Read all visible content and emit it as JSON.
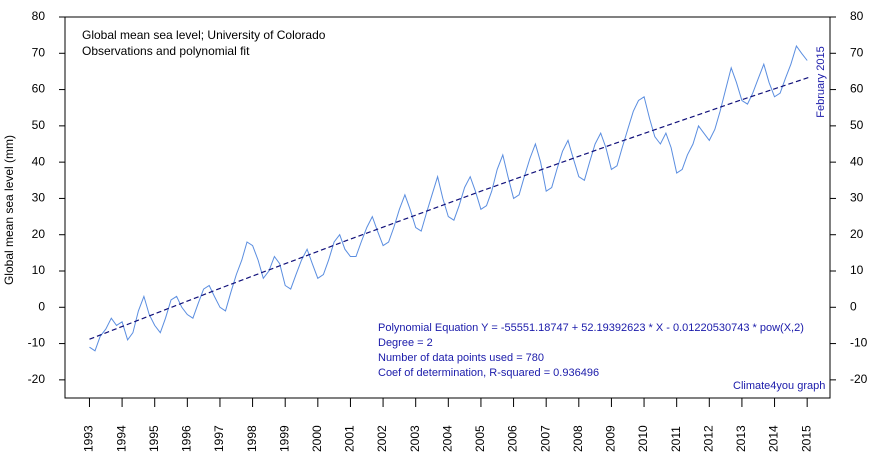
{
  "chart_data": {
    "type": "line",
    "title": "Global mean sea level; University of Colorado",
    "subtitle": "Observations and polynomial fit",
    "ylabel": "Global mean sea level (mm)",
    "date_label": "February 2015",
    "credit": "Climate4you graph",
    "annotations": [
      "Polynomial Equation Y = -55551.18747 + 52.19392623 * X - 0.01220530743 * pow(X,2)",
      "Degree = 2",
      "Number of data points used = 780",
      "Coef of determination, R-squared = 0.936496"
    ],
    "xlim": [
      1992.25,
      2015.7
    ],
    "xticks": [
      1993,
      1994,
      1995,
      1996,
      1997,
      1998,
      1999,
      2000,
      2001,
      2002,
      2003,
      2004,
      2005,
      2006,
      2007,
      2008,
      2009,
      2010,
      2011,
      2012,
      2013,
      2014,
      2015
    ],
    "ylim": [
      -25,
      80
    ],
    "yticks": [
      -20,
      -10,
      0,
      10,
      20,
      30,
      40,
      50,
      60,
      70,
      80
    ],
    "y2lim": [
      -25,
      80
    ],
    "y2ticks": [
      -20,
      -10,
      0,
      10,
      20,
      30,
      40,
      50,
      60,
      70,
      80
    ],
    "series": [
      {
        "color": "#5b8ee0",
        "style": "solid",
        "x": [
          1993,
          1993.17,
          1993.33,
          1993.5,
          1993.67,
          1993.83,
          1994,
          1994.17,
          1994.33,
          1994.5,
          1994.67,
          1994.83,
          1995,
          1995.17,
          1995.33,
          1995.5,
          1995.67,
          1995.83,
          1996,
          1996.17,
          1996.33,
          1996.5,
          1996.67,
          1996.83,
          1997,
          1997.17,
          1997.33,
          1997.5,
          1997.67,
          1997.83,
          1998,
          1998.17,
          1998.33,
          1998.5,
          1998.67,
          1998.83,
          1999,
          1999.17,
          1999.33,
          1999.5,
          1999.67,
          1999.83,
          2000,
          2000.17,
          2000.33,
          2000.5,
          2000.67,
          2000.83,
          2001,
          2001.17,
          2001.33,
          2001.5,
          2001.67,
          2001.83,
          2002,
          2002.17,
          2002.33,
          2002.5,
          2002.67,
          2002.83,
          2003,
          2003.17,
          2003.33,
          2003.5,
          2003.67,
          2003.83,
          2004,
          2004.17,
          2004.33,
          2004.5,
          2004.67,
          2004.83,
          2005,
          2005.17,
          2005.33,
          2005.5,
          2005.67,
          2005.83,
          2006,
          2006.17,
          2006.33,
          2006.5,
          2006.67,
          2006.83,
          2007,
          2007.17,
          2007.33,
          2007.5,
          2007.67,
          2007.83,
          2008,
          2008.17,
          2008.33,
          2008.5,
          2008.67,
          2008.83,
          2009,
          2009.17,
          2009.33,
          2009.5,
          2009.67,
          2009.83,
          2010,
          2010.17,
          2010.33,
          2010.5,
          2010.67,
          2010.83,
          2011,
          2011.17,
          2011.33,
          2011.5,
          2011.67,
          2011.83,
          2012,
          2012.17,
          2012.33,
          2012.5,
          2012.67,
          2012.83,
          2013,
          2013.17,
          2013.33,
          2013.5,
          2013.67,
          2013.83,
          2014,
          2014.17,
          2014.33,
          2014.5,
          2014.67,
          2014.83,
          2015
        ],
        "values": [
          -11,
          -12,
          -8,
          -6,
          -3,
          -5,
          -4,
          -9,
          -7,
          -1,
          3,
          -2,
          -5,
          -7,
          -3,
          2,
          3,
          0,
          -2,
          -3,
          1,
          5,
          6,
          3,
          0,
          -1,
          4,
          9,
          13,
          18,
          17,
          13,
          8,
          10,
          14,
          12,
          6,
          5,
          9,
          13,
          16,
          12,
          8,
          9,
          13,
          18,
          20,
          16,
          14,
          14,
          18,
          22,
          25,
          21,
          17,
          18,
          22,
          27,
          31,
          27,
          22,
          21,
          26,
          31,
          36,
          30,
          25,
          24,
          28,
          33,
          36,
          32,
          27,
          28,
          32,
          38,
          42,
          36,
          30,
          31,
          36,
          41,
          45,
          40,
          32,
          33,
          38,
          43,
          46,
          41,
          36,
          35,
          40,
          45,
          48,
          44,
          38,
          39,
          44,
          49,
          54,
          57,
          58,
          52,
          47,
          45,
          48,
          44,
          37,
          38,
          42,
          45,
          50,
          48,
          46,
          49,
          54,
          60,
          66,
          62,
          57,
          56,
          59,
          63,
          67,
          62,
          58,
          59,
          63,
          67,
          72,
          70,
          68
        ]
      },
      {
        "color": "#10107a",
        "style": "dashed",
        "x": [
          1993,
          1997,
          2001,
          2005,
          2009,
          2013,
          2015.1
        ],
        "values": [
          -8.8,
          5.2,
          18.8,
          32.0,
          44.8,
          57.2,
          63.5
        ]
      }
    ]
  }
}
